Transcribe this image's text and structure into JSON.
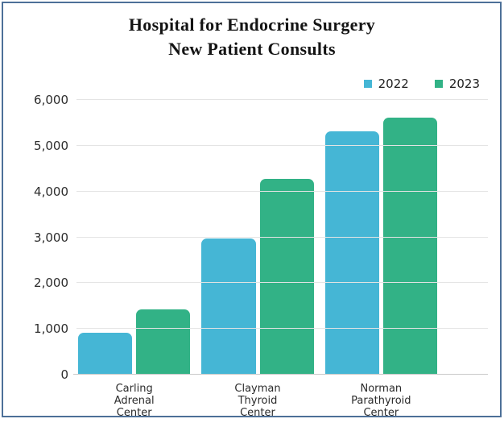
{
  "title": {
    "line1": "Hospital for Endocrine Surgery",
    "line2": "New Patient Consults"
  },
  "legend": [
    {
      "label": "2022",
      "color": "#45b6d5"
    },
    {
      "label": "2023",
      "color": "#32b286"
    }
  ],
  "chart_data": {
    "type": "bar",
    "title": "Hospital for Endocrine Surgery New Patient Consults",
    "categories": [
      "Carling\nAdrenal\nCenter",
      "Clayman\nThyroid\nCenter",
      "Norman\nParathyroid\nCenter"
    ],
    "series": [
      {
        "name": "2022",
        "color": "#45b6d5",
        "values": [
          900,
          2950,
          5300
        ]
      },
      {
        "name": "2023",
        "color": "#32b286",
        "values": [
          1400,
          4250,
          5600
        ]
      }
    ],
    "xlabel": "",
    "ylabel": "",
    "ylim": [
      0,
      6000
    ],
    "yticks": [
      0,
      1000,
      2000,
      3000,
      4000,
      5000,
      6000
    ],
    "ytick_labels": [
      "0",
      "1,000",
      "2,000",
      "3,000",
      "4,000",
      "5,000",
      "6,000"
    ],
    "grid": "horizontal",
    "legend_position": "top-right"
  },
  "frame": {
    "border_color": "#4d7098",
    "background": "#ffffff"
  }
}
